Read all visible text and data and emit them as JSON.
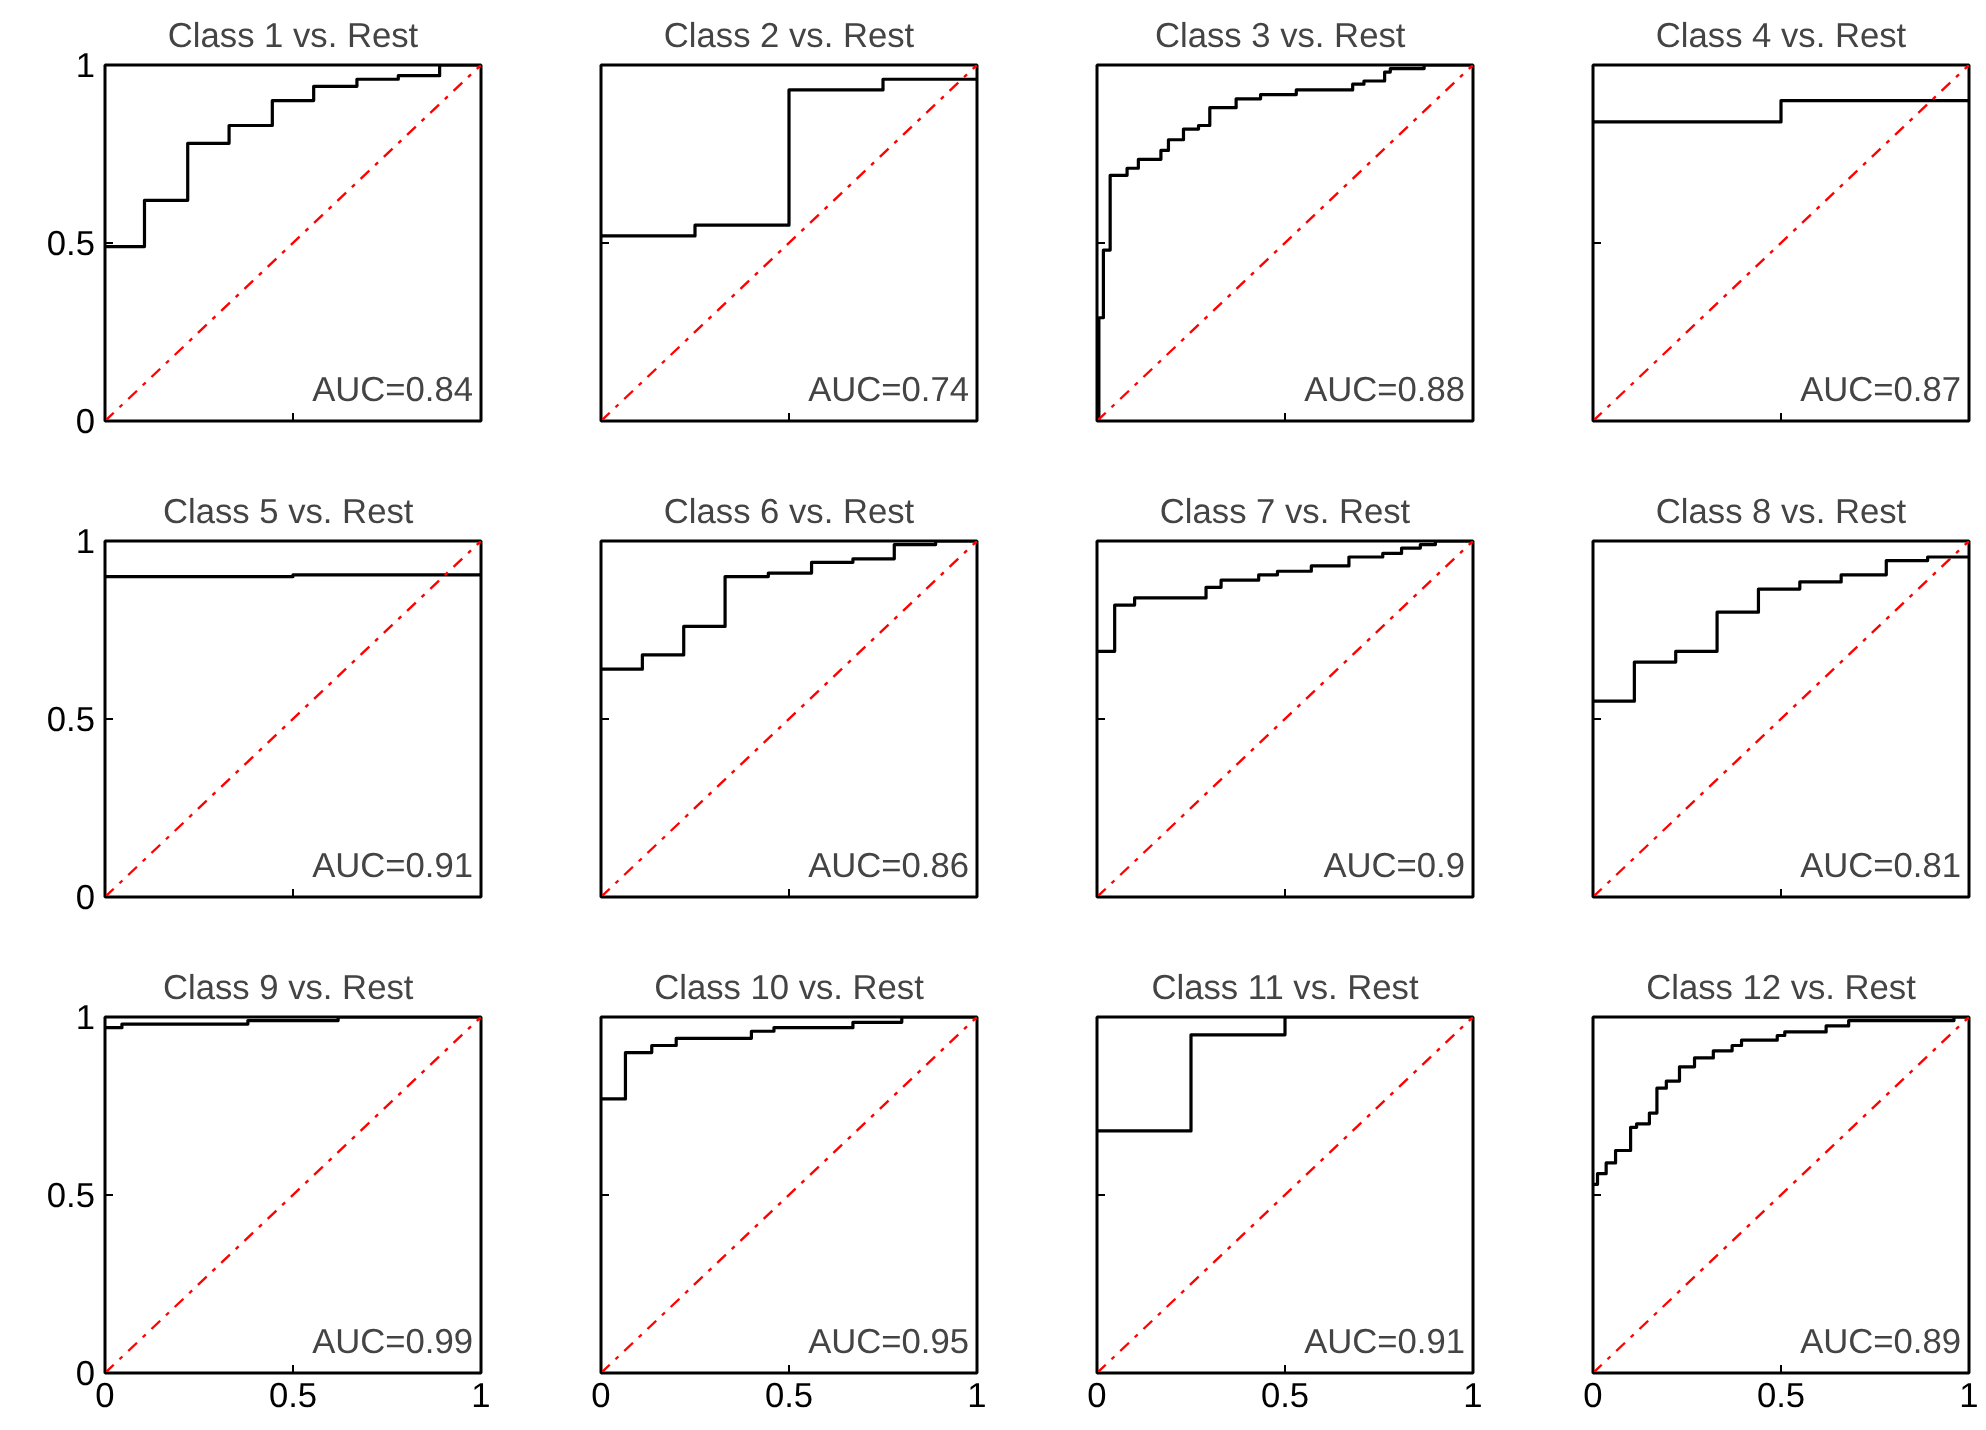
{
  "chart_data": [
    {
      "type": "step",
      "title": "Class 1 vs. Rest",
      "xlim": [
        0,
        1
      ],
      "ylim": [
        0,
        1
      ],
      "xticks": [
        0,
        0.5,
        1
      ],
      "yticks": [
        0,
        0.5,
        1
      ],
      "tick_labels": "y",
      "annotations": [
        "AUC=0.84"
      ],
      "series": [
        {
          "color": "#000000",
          "x": [
            0,
            0.105,
            0.22,
            0.33,
            0.445,
            0.555,
            0.67,
            0.78,
            0.89,
            1
          ],
          "values": [
            0.49,
            0.62,
            0.78,
            0.83,
            0.9,
            0.94,
            0.96,
            0.97,
            1,
            1
          ]
        },
        {
          "type": "line",
          "color": "#ff0000",
          "line_style": "dashdot",
          "x": [
            0,
            1
          ],
          "values": [
            0,
            1
          ]
        }
      ]
    },
    {
      "type": "step",
      "title": "Class 2 vs. Rest",
      "xlim": [
        0,
        1
      ],
      "ylim": [
        0,
        1
      ],
      "xticks": [
        0,
        0.5,
        1
      ],
      "yticks": [
        0,
        0.5,
        1
      ],
      "tick_labels": false,
      "annotations": [
        "AUC=0.74"
      ],
      "series": [
        {
          "color": "#000000",
          "x": [
            0,
            0.25,
            0.5,
            0.75,
            1
          ],
          "values": [
            0.52,
            0.55,
            0.93,
            0.96,
            0.96
          ]
        },
        {
          "type": "line",
          "color": "#ff0000",
          "line_style": "dashdot",
          "x": [
            0,
            1
          ],
          "values": [
            0,
            1
          ]
        }
      ]
    },
    {
      "type": "step",
      "title": "Class 3  vs. Rest",
      "xlim": [
        0,
        1
      ],
      "ylim": [
        0,
        1
      ],
      "xticks": [
        0,
        0.5,
        1
      ],
      "yticks": [
        0,
        0.5,
        1
      ],
      "tick_labels": false,
      "annotations": [
        "AUC=0.88"
      ],
      "series": [
        {
          "color": "#000000",
          "x": [
            0,
            0.005,
            0.017,
            0.035,
            0.08,
            0.11,
            0.17,
            0.19,
            0.23,
            0.27,
            0.3,
            0.37,
            0.435,
            0.53,
            0.68,
            0.71,
            0.765,
            0.78,
            0.87,
            1
          ],
          "values": [
            0,
            0.29,
            0.48,
            0.69,
            0.71,
            0.735,
            0.76,
            0.79,
            0.82,
            0.83,
            0.88,
            0.905,
            0.917,
            0.93,
            0.946,
            0.955,
            0.98,
            0.99,
            1,
            1
          ]
        },
        {
          "type": "line",
          "color": "#ff0000",
          "line_style": "dashdot",
          "x": [
            0,
            1
          ],
          "values": [
            0,
            1
          ]
        }
      ]
    },
    {
      "type": "step",
      "title": "Class 4 vs. Rest",
      "xlim": [
        0,
        1
      ],
      "ylim": [
        0,
        1
      ],
      "xticks": [
        0,
        0.5,
        1
      ],
      "yticks": [
        0,
        0.5,
        1
      ],
      "tick_labels": false,
      "annotations": [
        "AUC=0.87"
      ],
      "series": [
        {
          "color": "#000000",
          "x": [
            0,
            0.5,
            1
          ],
          "values": [
            0.84,
            0.9,
            0.9
          ]
        },
        {
          "type": "line",
          "color": "#ff0000",
          "line_style": "dashdot",
          "x": [
            0,
            1
          ],
          "values": [
            0,
            1
          ]
        }
      ]
    },
    {
      "type": "step",
      "title": "Class 5  vs. Rest",
      "xlim": [
        0,
        1
      ],
      "ylim": [
        0,
        1
      ],
      "xticks": [
        0,
        0.5,
        1
      ],
      "yticks": [
        0,
        0.5,
        1
      ],
      "tick_labels": "y",
      "annotations": [
        "AUC=0.91"
      ],
      "series": [
        {
          "color": "#000000",
          "x": [
            0,
            0.5,
            1
          ],
          "values": [
            0.9,
            0.905,
            0.905
          ]
        },
        {
          "type": "line",
          "color": "#ff0000",
          "line_style": "dashdot",
          "x": [
            0,
            1
          ],
          "values": [
            0,
            1
          ]
        }
      ]
    },
    {
      "type": "step",
      "title": "Class 6 vs. Rest",
      "xlim": [
        0,
        1
      ],
      "ylim": [
        0,
        1
      ],
      "xticks": [
        0,
        0.5,
        1
      ],
      "yticks": [
        0,
        0.5,
        1
      ],
      "tick_labels": false,
      "annotations": [
        "AUC=0.86"
      ],
      "series": [
        {
          "color": "#000000",
          "x": [
            0,
            0.11,
            0.22,
            0.33,
            0.445,
            0.56,
            0.67,
            0.78,
            0.89,
            1
          ],
          "values": [
            0.64,
            0.68,
            0.76,
            0.9,
            0.91,
            0.94,
            0.95,
            0.99,
            1,
            1
          ]
        },
        {
          "type": "line",
          "color": "#ff0000",
          "line_style": "dashdot",
          "x": [
            0,
            1
          ],
          "values": [
            0,
            1
          ]
        }
      ]
    },
    {
      "type": "step",
      "title": "Class 7 vs. Rest",
      "xlim": [
        0,
        1
      ],
      "ylim": [
        0,
        1
      ],
      "xticks": [
        0,
        0.5,
        1
      ],
      "yticks": [
        0,
        0.5,
        1
      ],
      "tick_labels": false,
      "annotations": [
        "AUC=0.9"
      ],
      "series": [
        {
          "color": "#000000",
          "x": [
            0,
            0.047,
            0.1,
            0.29,
            0.33,
            0.43,
            0.48,
            0.57,
            0.67,
            0.76,
            0.81,
            0.86,
            0.9,
            1
          ],
          "values": [
            0.69,
            0.82,
            0.84,
            0.87,
            0.89,
            0.905,
            0.915,
            0.93,
            0.955,
            0.965,
            0.98,
            0.99,
            1,
            1
          ]
        },
        {
          "type": "line",
          "color": "#ff0000",
          "line_style": "dashdot",
          "x": [
            0,
            1
          ],
          "values": [
            0,
            1
          ]
        }
      ]
    },
    {
      "type": "step",
      "title": "Class 8 vs. Rest",
      "xlim": [
        0,
        1
      ],
      "ylim": [
        0,
        1
      ],
      "xticks": [
        0,
        0.5,
        1
      ],
      "yticks": [
        0,
        0.5,
        1
      ],
      "tick_labels": false,
      "annotations": [
        "AUC=0.81"
      ],
      "series": [
        {
          "color": "#000000",
          "x": [
            0,
            0.11,
            0.22,
            0.33,
            0.44,
            0.55,
            0.66,
            0.78,
            0.89,
            1
          ],
          "values": [
            0.55,
            0.66,
            0.69,
            0.8,
            0.865,
            0.885,
            0.905,
            0.945,
            0.955,
            0.955
          ]
        },
        {
          "type": "line",
          "color": "#ff0000",
          "line_style": "dashdot",
          "x": [
            0,
            1
          ],
          "values": [
            0,
            1
          ]
        }
      ]
    },
    {
      "type": "step",
      "title": "Class 9  vs. Rest",
      "xlim": [
        0,
        1
      ],
      "ylim": [
        0,
        1
      ],
      "xticks": [
        0,
        0.5,
        1
      ],
      "yticks": [
        0,
        0.5,
        1
      ],
      "annotations": [
        "AUC=0.99"
      ],
      "series": [
        {
          "color": "#000000",
          "x": [
            0,
            0.045,
            0.38,
            0.62,
            1
          ],
          "values": [
            0.97,
            0.98,
            0.99,
            1,
            1
          ]
        },
        {
          "type": "line",
          "color": "#ff0000",
          "line_style": "dashdot",
          "x": [
            0,
            1
          ],
          "values": [
            0,
            1
          ]
        }
      ]
    },
    {
      "type": "step",
      "title": "Class 10 vs. Rest",
      "xlim": [
        0,
        1
      ],
      "ylim": [
        0,
        1
      ],
      "xticks": [
        0,
        0.5,
        1
      ],
      "yticks": [
        0,
        0.5,
        1
      ],
      "tick_labels": "x",
      "annotations": [
        "AUC=0.95"
      ],
      "series": [
        {
          "color": "#000000",
          "x": [
            0,
            0.065,
            0.135,
            0.2,
            0.4,
            0.46,
            0.67,
            0.8,
            1
          ],
          "values": [
            0.77,
            0.9,
            0.92,
            0.94,
            0.96,
            0.97,
            0.985,
            1,
            1
          ]
        },
        {
          "type": "line",
          "color": "#ff0000",
          "line_style": "dashdot",
          "x": [
            0,
            1
          ],
          "values": [
            0,
            1
          ]
        }
      ]
    },
    {
      "type": "step",
      "title": "Class 11 vs. Rest",
      "xlim": [
        0,
        1
      ],
      "ylim": [
        0,
        1
      ],
      "xticks": [
        0,
        0.5,
        1
      ],
      "yticks": [
        0,
        0.5,
        1
      ],
      "tick_labels": "x",
      "annotations": [
        "AUC=0.91"
      ],
      "series": [
        {
          "color": "#000000",
          "x": [
            0,
            0.25,
            0.5,
            1
          ],
          "values": [
            0.68,
            0.95,
            1,
            1
          ]
        },
        {
          "type": "line",
          "color": "#ff0000",
          "line_style": "dashdot",
          "x": [
            0,
            1
          ],
          "values": [
            0,
            1
          ]
        }
      ]
    },
    {
      "type": "step",
      "title": "Class 12 vs. Rest",
      "xlim": [
        0,
        1
      ],
      "ylim": [
        0,
        1
      ],
      "xticks": [
        0,
        0.5,
        1
      ],
      "yticks": [
        0,
        0.5,
        1
      ],
      "tick_labels": "x",
      "annotations": [
        "AUC=0.89"
      ],
      "series": [
        {
          "color": "#000000",
          "x": [
            0,
            0.012,
            0.035,
            0.06,
            0.1,
            0.116,
            0.15,
            0.17,
            0.195,
            0.23,
            0.27,
            0.32,
            0.37,
            0.395,
            0.49,
            0.51,
            0.62,
            0.68,
            0.96,
            1
          ],
          "values": [
            0.53,
            0.56,
            0.59,
            0.625,
            0.69,
            0.7,
            0.73,
            0.8,
            0.82,
            0.86,
            0.885,
            0.905,
            0.92,
            0.935,
            0.948,
            0.958,
            0.975,
            0.99,
            1,
            1
          ]
        },
        {
          "type": "line",
          "color": "#ff0000",
          "line_style": "dashdot",
          "x": [
            0,
            1
          ],
          "values": [
            0,
            1
          ]
        }
      ]
    }
  ]
}
